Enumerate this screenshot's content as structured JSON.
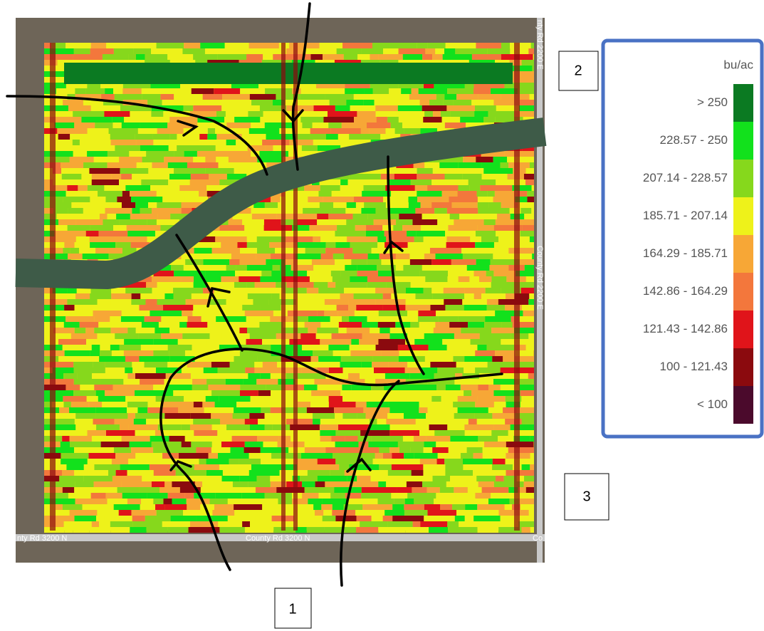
{
  "map": {
    "road_labels": [
      "nty Rd 3200 N",
      "County Rd 3200 N",
      "nty Rd 2200 E",
      "County Rd 2200 E",
      "Co"
    ],
    "callouts": [
      "1",
      "2",
      "3"
    ]
  },
  "legend": {
    "title": "bu/ac",
    "items": [
      {
        "label": "> 250",
        "color": "#0b7a22"
      },
      {
        "label": "228.57 - 250",
        "color": "#12e11c"
      },
      {
        "label": "207.14 - 228.57",
        "color": "#86d81c"
      },
      {
        "label": "185.71 - 207.14",
        "color": "#eef21a"
      },
      {
        "label": "164.29 - 185.71",
        "color": "#f7a736"
      },
      {
        "label": "142.86 - 164.29",
        "color": "#f3773c"
      },
      {
        "label": "121.43 - 142.86",
        "color": "#e0141a"
      },
      {
        "label": "100 - 121.43",
        "color": "#8b0a0e"
      },
      {
        "label": "< 100",
        "color": "#4b0a2c"
      }
    ]
  }
}
